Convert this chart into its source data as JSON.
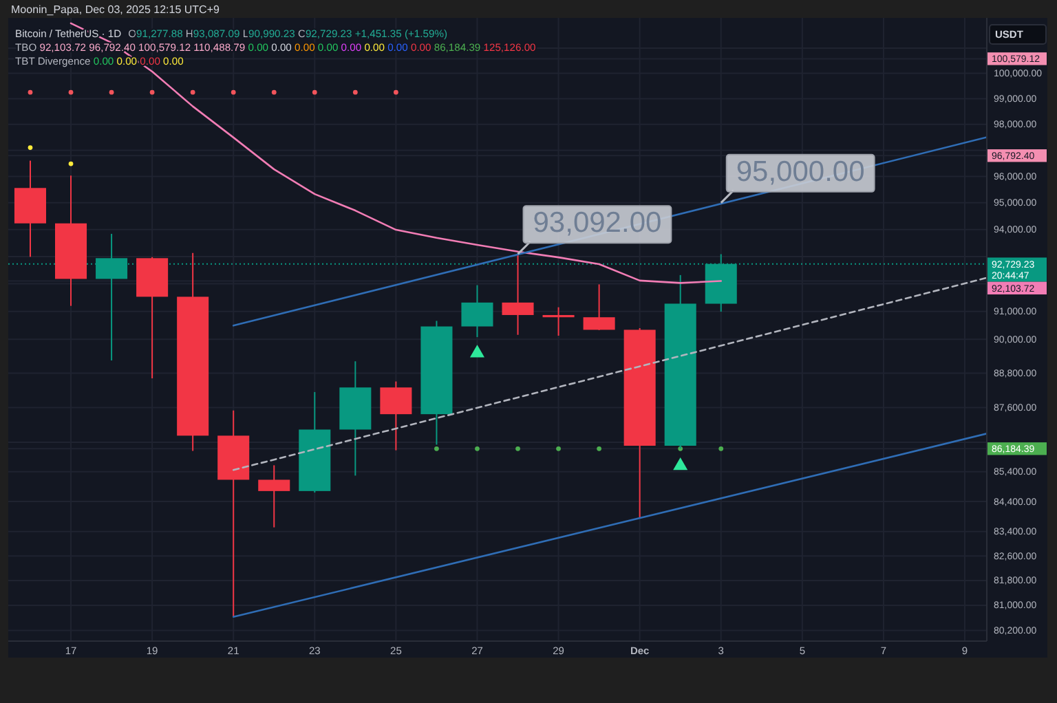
{
  "chart_data": {
    "type": "candlestick",
    "title": "Bitcoin / TetherUS · 1D",
    "subtitle": "O91,277.88 H93,087.09 L90,990.23 C92,729.23 +1,451.35 (+1.59%)",
    "ylabel": "USDT",
    "x": [
      "2025-11-16",
      "2025-11-17",
      "2025-11-18",
      "2025-11-19",
      "2025-11-20",
      "2025-11-21",
      "2025-11-22",
      "2025-11-23",
      "2025-11-24",
      "2025-11-25",
      "2025-11-26",
      "2025-11-27",
      "2025-11-28",
      "2025-11-29",
      "2025-11-30",
      "2025-12-01",
      "2025-12-02",
      "2025-12-03"
    ],
    "ohlc": [
      [
        95560,
        96600,
        92990,
        94230
      ],
      [
        94230,
        96030,
        91200,
        92180
      ],
      [
        92180,
        93840,
        89250,
        92940
      ],
      [
        92940,
        92980,
        88620,
        91530
      ],
      [
        91530,
        93130,
        86110,
        86630
      ],
      [
        86630,
        87500,
        80630,
        85130
      ],
      [
        85130,
        85620,
        83540,
        84750
      ],
      [
        84750,
        88140,
        84700,
        86840
      ],
      [
        86840,
        89220,
        85270,
        88300
      ],
      [
        88300,
        88510,
        86130,
        87370
      ],
      [
        87370,
        90660,
        86320,
        90460
      ],
      [
        90460,
        91950,
        90080,
        91320
      ],
      [
        91320,
        93092,
        90160,
        90870
      ],
      [
        90870,
        91150,
        90130,
        90790
      ],
      [
        90790,
        91980,
        90330,
        90340
      ],
      [
        90340,
        90400,
        83870,
        86285
      ],
      [
        86285,
        92320,
        86190,
        91280
      ],
      [
        91277.88,
        93087.09,
        90990.23,
        92729.23
      ]
    ],
    "colors": [
      "#f23645",
      "#f23645",
      "#089981",
      "#f23645",
      "#f23645",
      "#f23645",
      "#f23645",
      "#089981",
      "#089981",
      "#f23645",
      "#089981",
      "#089981",
      "#f23645",
      "#f23645",
      "#f23645",
      "#f23645",
      "#089981",
      "#089981"
    ],
    "series": [
      {
        "type": "line",
        "color": "#f27db5",
        "x": [
          "2025-11-17",
          "2025-11-18",
          "2025-11-19",
          "2025-11-20",
          "2025-11-21",
          "2025-11-22",
          "2025-11-23",
          "2025-11-24",
          "2025-11-25",
          "2025-11-26",
          "2025-11-27",
          "2025-11-28",
          "2025-11-29",
          "2025-11-30",
          "2025-12-01",
          "2025-12-02",
          "2025-12-03"
        ],
        "values": [
          102000,
          101220,
          100070,
          98700,
          97490,
          96270,
          95330,
          94710,
          93990,
          93690,
          93430,
          93180,
          92970,
          92720,
          92120,
          92030,
          92103.72
        ]
      },
      {
        "type": "line",
        "color": "#2f6db5",
        "x": [
          "2025-11-21",
          "2025-12-09T13:00"
        ],
        "values": [
          90490,
          97500
        ]
      },
      {
        "type": "line",
        "color": "#2f6db5",
        "x": [
          "2025-11-21",
          "2025-12-09T13:00"
        ],
        "values": [
          80630,
          86700
        ]
      },
      {
        "type": "line",
        "color": "#b2b5be",
        "line_style": "dashed",
        "x": [
          "2025-11-21",
          "2025-12-09T13:00"
        ],
        "values": [
          85460,
          92220
        ]
      },
      {
        "type": "scatter",
        "marker": "circle",
        "color": "#ffeb3b",
        "x": [
          "2025-11-16",
          "2025-11-17"
        ],
        "values": [
          97100,
          96480
        ]
      },
      {
        "type": "scatter",
        "marker": "circle",
        "color": "#f2545b",
        "x": [
          "2025-11-16",
          "2025-11-17",
          "2025-11-18",
          "2025-11-19",
          "2025-11-20",
          "2025-11-21",
          "2025-11-22",
          "2025-11-23",
          "2025-11-24",
          "2025-11-25"
        ],
        "values": [
          99250,
          99250,
          99250,
          99250,
          99250,
          99250,
          99250,
          99250,
          99250,
          99250
        ]
      },
      {
        "type": "scatter",
        "marker": "circle",
        "color": "#4caf50",
        "x": [
          "2025-11-26",
          "2025-11-27",
          "2025-11-28",
          "2025-11-29",
          "2025-11-30",
          "2025-12-01",
          "2025-12-02",
          "2025-12-03"
        ],
        "values": [
          86184.39,
          86184.39,
          86184.39,
          86184.39,
          86184.39,
          null,
          86184.39,
          86184.39
        ]
      },
      {
        "type": "scatter",
        "marker": "triangle",
        "color": "#2ee89b",
        "x": [
          "2025-11-27",
          "2025-12-02"
        ],
        "values": [
          89510,
          85600
        ]
      }
    ],
    "xlim": [
      "2025-11-15T11:00",
      "2025-12-09T13:00"
    ],
    "xticks": [
      {
        "value": "2025-11-17",
        "label": "17"
      },
      {
        "value": "2025-11-19",
        "label": "19"
      },
      {
        "value": "2025-11-21",
        "label": "21"
      },
      {
        "value": "2025-11-23",
        "label": "23"
      },
      {
        "value": "2025-11-25",
        "label": "25"
      },
      {
        "value": "2025-11-27",
        "label": "27"
      },
      {
        "value": "2025-11-29",
        "label": "29"
      },
      {
        "value": "2025-12-01",
        "label": "Dec"
      },
      {
        "value": "2025-12-03",
        "label": "3"
      },
      {
        "value": "2025-12-05",
        "label": "5"
      },
      {
        "value": "2025-12-07",
        "label": "7"
      },
      {
        "value": "2025-12-09",
        "label": "9"
      }
    ],
    "ylim": [
      79860,
      102220
    ],
    "yticks": [
      {
        "value": 80200,
        "label": "80,200.00"
      },
      {
        "value": 81000,
        "label": "81,000.00"
      },
      {
        "value": 81800,
        "label": "81,800.00"
      },
      {
        "value": 82600,
        "label": "82,600.00"
      },
      {
        "value": 83400,
        "label": "83,400.00"
      },
      {
        "value": 84400,
        "label": "84,400.00"
      },
      {
        "value": 85400,
        "label": "85,400.00"
      },
      {
        "value": 86400,
        "label": null
      },
      {
        "value": 87600,
        "label": "87,600.00"
      },
      {
        "value": 88800,
        "label": "88,800.00"
      },
      {
        "value": 90000,
        "label": "90,000.00"
      },
      {
        "value": 91000,
        "label": "91,000.00"
      },
      {
        "value": 92000,
        "label": null
      },
      {
        "value": 93000,
        "label": null
      },
      {
        "value": 94000,
        "label": "94,000.00"
      },
      {
        "value": 95000,
        "label": "95,000.00"
      },
      {
        "value": 96000,
        "label": "96,000.00"
      },
      {
        "value": 97000,
        "label": null
      },
      {
        "value": 98000,
        "label": "98,000.00"
      },
      {
        "value": 99000,
        "label": "99,000.00"
      },
      {
        "value": 100000,
        "label": "100,000.00"
      },
      {
        "value": 101000,
        "label": null
      },
      {
        "value": 100579.12,
        "label": "100,579.12"
      },
      {
        "value": 96792.4,
        "label": "96,792.40"
      },
      {
        "value": 92103.72,
        "label": "92,103.72"
      },
      {
        "value": 86184.39,
        "label": "86,184.39"
      }
    ],
    "log": true,
    "grid": true,
    "ref_lines": [
      {
        "axis": "y",
        "value": 92729.23,
        "label": "92,729.23\n20:44:47",
        "color": "#089981",
        "line_style": "dotted"
      }
    ],
    "annotations": [
      "Moonin_Papa, Dec 03, 2025 12:15 UTC+9",
      "TBO 92,103.72 96,792.40 100,579.12 110,488.79 0.00 0.00 0.00 0.00 0.00 0.00 0.00 0.00 86,184.39 125,126.00",
      "TBT Divergence 0.00 0.00 0.00 0.00",
      {
        "text": "93,092.00",
        "x": "2025-11-28",
        "y": 93092
      },
      {
        "text": "95,000.00",
        "x": "2025-12-03",
        "y": 95000
      }
    ]
  }
}
